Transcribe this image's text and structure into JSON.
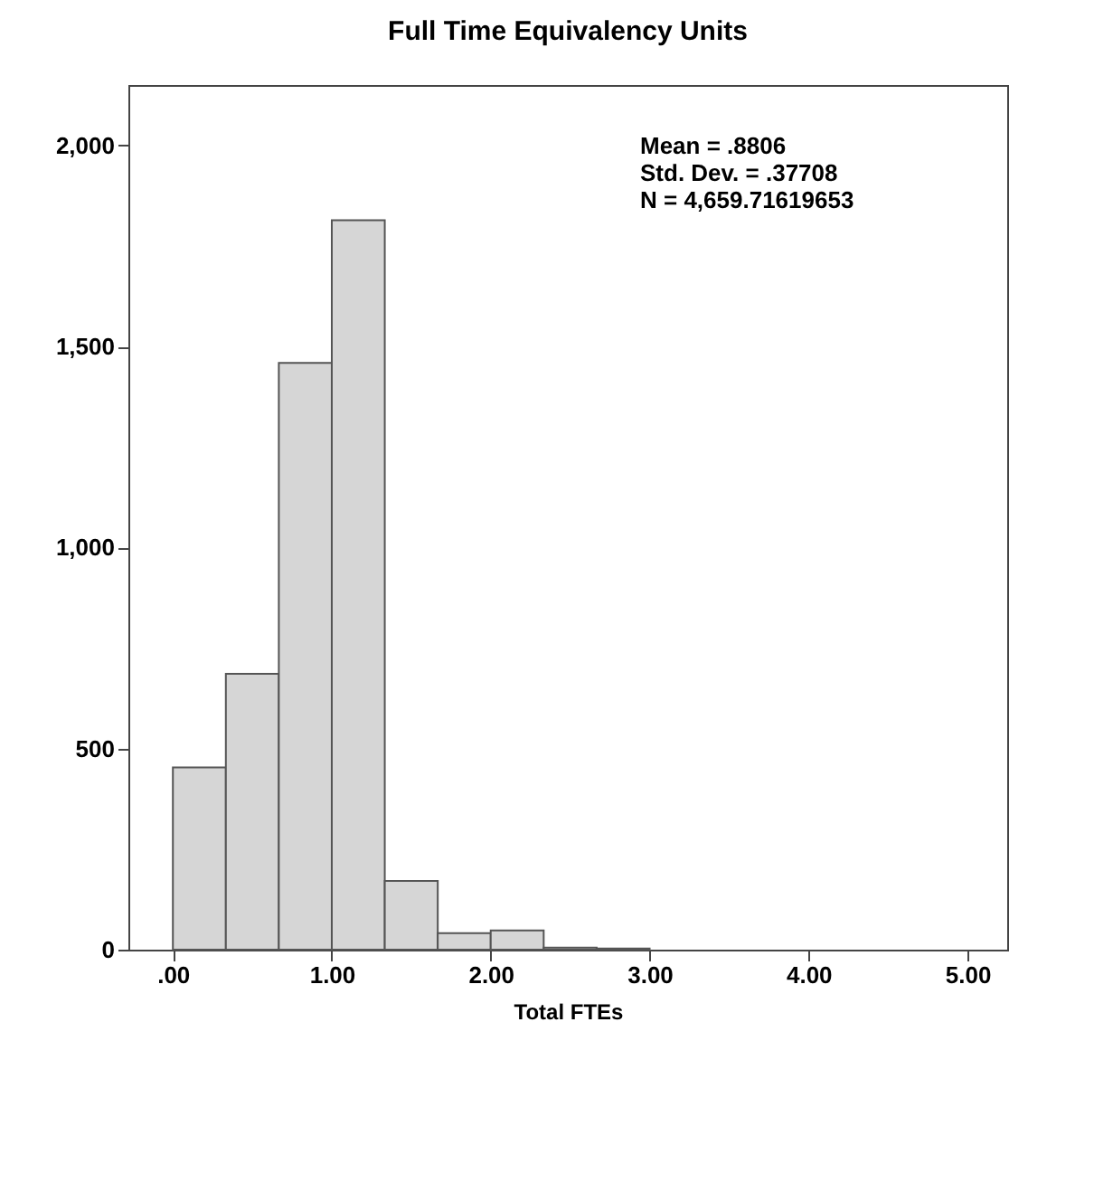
{
  "chart_data": {
    "type": "histogram",
    "title": "Full Time Equivalency Units",
    "xlabel": "Total FTEs",
    "bins": [
      0,
      0.3333,
      0.6667,
      1,
      1.3333,
      1.6667,
      2,
      2.3333,
      2.6667,
      3
    ],
    "values": [
      453,
      686,
      1459,
      1814,
      171,
      41,
      48,
      5,
      3
    ],
    "color": "#d6d6d6",
    "xlim": [
      -0.28,
      5.25
    ],
    "xticks": [
      {
        "value": 0,
        "label": ".00"
      },
      {
        "value": 1,
        "label": "1.00"
      },
      {
        "value": 2,
        "label": "2.00"
      },
      {
        "value": 3,
        "label": "3.00"
      },
      {
        "value": 4,
        "label": "4.00"
      },
      {
        "value": 5,
        "label": "5.00"
      }
    ],
    "ylim": [
      0,
      2150
    ],
    "yticks": [
      0,
      {
        "value": 500,
        "label": "500"
      },
      {
        "value": 1000,
        "label": "1,000"
      },
      {
        "value": 1500,
        "label": "1,500"
      },
      {
        "value": 2000,
        "label": "2,000"
      }
    ],
    "annotations": [
      "Mean = .8806",
      "Std. Dev. = .37708",
      "N = 4,659.71619653"
    ],
    "grid": false
  }
}
